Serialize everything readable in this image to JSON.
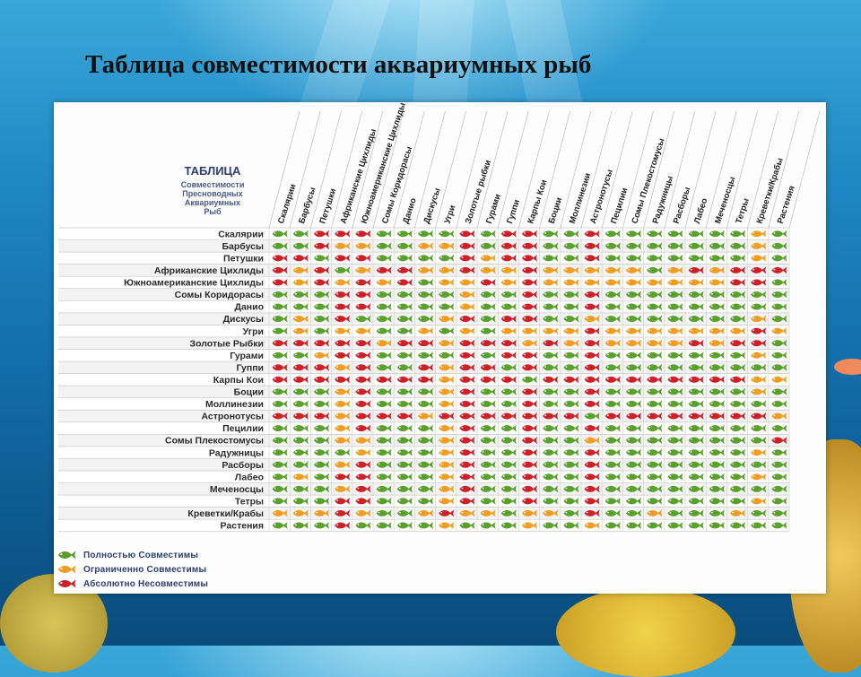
{
  "slide": {
    "title": "Таблица совместимости аквариумных рыб"
  },
  "table_heading": {
    "line1": "ТАБЛИЦА",
    "line2": "Совместимости",
    "line3": "Пресноводных",
    "line4": "Аквариумных",
    "line5": "Рыб"
  },
  "legend": [
    {
      "key": "G",
      "label": "Полностью Совместимы",
      "color": "#5aa02c"
    },
    {
      "key": "O",
      "label": "Ограниченно Совместимы",
      "color": "#f29d1f"
    },
    {
      "key": "R",
      "label": "Абсолютно Несовместимы",
      "color": "#cf2027"
    }
  ],
  "chart_data": {
    "type": "table",
    "title": "ТАБЛИЦА Совместимости Пресноводных Аквариумных Рыб",
    "columns": [
      "Скалярии",
      "Барбусы",
      "Петушки",
      "Африканские Цихлиды",
      "Южноамериканские Цихлиды",
      "Сомы Коридорасы",
      "Данио",
      "Дискусы",
      "Угри",
      "Золотые рыбки",
      "Гурами",
      "Гуппи",
      "Карпы Кои",
      "Боции",
      "Моллинезии",
      "Астронотусы",
      "Пецилии",
      "Сомы Плекостомусы",
      "Радужницы",
      "Расборы",
      "Лабео",
      "Меченосцы",
      "Тетры",
      "Креветки/Крабы",
      "Растения"
    ],
    "rows": [
      "Скалярии",
      "Барбусы",
      "Петушки",
      "Африканские Цихлиды",
      "Южноамериканские Цихлиды",
      "Сомы Коридорасы",
      "Данио",
      "Дискусы",
      "Угри",
      "Золотые Рыбки",
      "Гурами",
      "Гуппи",
      "Карпы Кои",
      "Боции",
      "Моллинезии",
      "Астронотусы",
      "Пецилии",
      "Сомы Плекостомусы",
      "Радужницы",
      "Расборы",
      "Лабео",
      "Меченосцы",
      "Тетры",
      "Креветки/Крабы",
      "Растения"
    ],
    "cells": [
      "GGRRRGGGGRGRRGGRGGGGGGGOG",
      "GGROOGGOORGRRGGRGGGGGGGOG",
      "RRGRRGGGGRORRGGRGGGGGGGOG",
      "RORGORROOROOROOOOOGORORRR",
      "RORORORGOOROROOOOOOOOORRG",
      "GGGRRGGGGOGGRGGRGGGGGGGGG",
      "GGGRRGGGGOGGRGGRGGGGGGGGG",
      "GOGRGGGGORGRRGGOGGGGGGGOG",
      "GOGOOGGOGOGOOOOROOOOOOORO",
      "RRRRRORRORRROROROOOORORRG",
      "GGORRGGGGRGRRGGRGGGGGGGOG",
      "RRRORGGRORRGRGGRGGGGGGGGG",
      "RRRRRRRRORRRGRRRRRRRRRROO",
      "GGGORGGGORGGRGGRGGGGGGGOG",
      "GGGORGGGORGGRGGRGGGGGGGGG",
      "RRRORRRORRRRRRRGRRRRRRRRO",
      "GGGORGGGORGGRGGRGGGGGGGGG",
      "GGGOOGGGORGGRGGOGGGGGGGGR",
      "GGGGOGGGORGGRGGRGGGGGGGOG",
      "GGGORGGGORGGRGGRGGGGGGGGG",
      "GOGRRGGGORGGRGGRGGGGGGGOG",
      "GGGORGGGORGGRGGRGGGGGGGGG",
      "GGGRRGGGORGGRGGRGGGGGGGOG",
      "OOOROGGOROOGOOGRGGOGGGOGG",
      "GGGRGGGGOGGGOGGOGGGGGGGGG"
    ]
  }
}
